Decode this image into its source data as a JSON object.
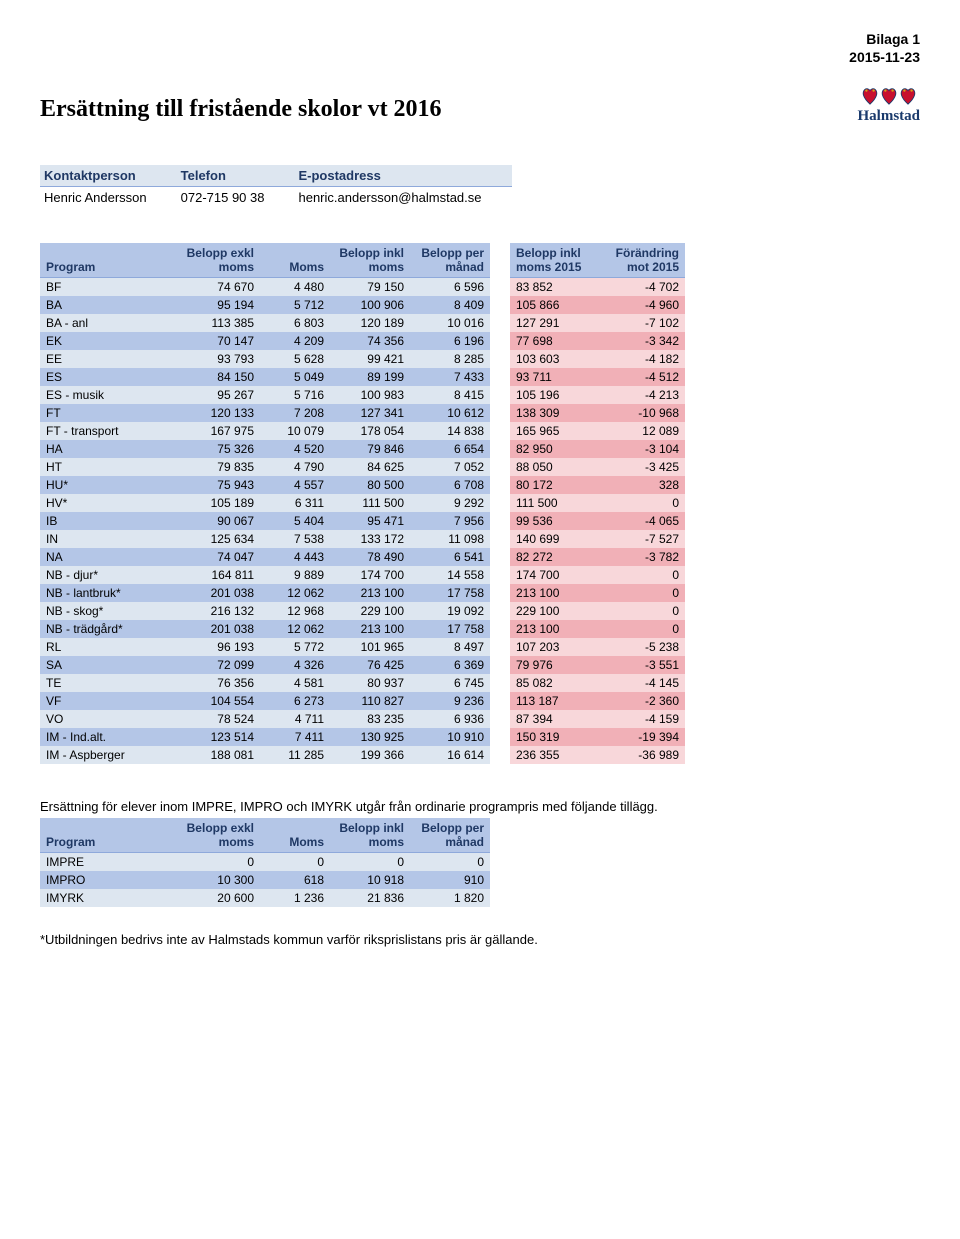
{
  "header": {
    "appendix": "Bilaga 1",
    "date": "2015-11-23",
    "title": "Ersättning till fristående skolor vt 2016"
  },
  "logo": {
    "text": "Halmstad",
    "heart_accent": "#d4a017",
    "heart_fill": "#c8102e",
    "heart_stroke": "#1a3a6c"
  },
  "contact": {
    "headers": [
      "Kontaktperson",
      "Telefon",
      "E-postadress"
    ],
    "name": "Henric Andersson",
    "phone": "072-715 90 38",
    "email": "henric.andersson@halmstad.se"
  },
  "main_table": {
    "left_headers": [
      "Program",
      "Belopp exkl moms",
      "Moms",
      "Belopp inkl moms",
      "Belopp per månad"
    ],
    "right_headers": [
      "Belopp inkl moms 2015",
      "Förändring mot 2015"
    ],
    "rows": [
      {
        "p": "BF",
        "v": [
          "74 670",
          "4 480",
          "79 150",
          "6 596"
        ],
        "r": [
          "83 852",
          "-4 702"
        ]
      },
      {
        "p": "BA",
        "v": [
          "95 194",
          "5 712",
          "100 906",
          "8 409"
        ],
        "r": [
          "105 866",
          "-4 960"
        ]
      },
      {
        "p": "BA - anl",
        "v": [
          "113 385",
          "6 803",
          "120 189",
          "10 016"
        ],
        "r": [
          "127 291",
          "-7 102"
        ]
      },
      {
        "p": "EK",
        "v": [
          "70 147",
          "4 209",
          "74 356",
          "6 196"
        ],
        "r": [
          "77 698",
          "-3 342"
        ]
      },
      {
        "p": "EE",
        "v": [
          "93 793",
          "5 628",
          "99 421",
          "8 285"
        ],
        "r": [
          "103 603",
          "-4 182"
        ]
      },
      {
        "p": "ES",
        "v": [
          "84 150",
          "5 049",
          "89 199",
          "7 433"
        ],
        "r": [
          "93 711",
          "-4 512"
        ]
      },
      {
        "p": "ES - musik",
        "v": [
          "95 267",
          "5 716",
          "100 983",
          "8 415"
        ],
        "r": [
          "105 196",
          "-4 213"
        ]
      },
      {
        "p": "FT",
        "v": [
          "120 133",
          "7 208",
          "127 341",
          "10 612"
        ],
        "r": [
          "138 309",
          "-10 968"
        ]
      },
      {
        "p": "FT - transport",
        "v": [
          "167 975",
          "10 079",
          "178 054",
          "14 838"
        ],
        "r": [
          "165 965",
          "12 089"
        ]
      },
      {
        "p": "HA",
        "v": [
          "75 326",
          "4 520",
          "79 846",
          "6 654"
        ],
        "r": [
          "82 950",
          "-3 104"
        ]
      },
      {
        "p": "HT",
        "v": [
          "79 835",
          "4 790",
          "84 625",
          "7 052"
        ],
        "r": [
          "88 050",
          "-3 425"
        ]
      },
      {
        "p": "HU*",
        "v": [
          "75 943",
          "4 557",
          "80 500",
          "6 708"
        ],
        "r": [
          "80 172",
          "328"
        ]
      },
      {
        "p": "HV*",
        "v": [
          "105 189",
          "6 311",
          "111 500",
          "9 292"
        ],
        "r": [
          "111 500",
          "0"
        ]
      },
      {
        "p": "IB",
        "v": [
          "90 067",
          "5 404",
          "95 471",
          "7 956"
        ],
        "r": [
          "99 536",
          "-4 065"
        ]
      },
      {
        "p": "IN",
        "v": [
          "125 634",
          "7 538",
          "133 172",
          "11 098"
        ],
        "r": [
          "140 699",
          "-7 527"
        ]
      },
      {
        "p": "NA",
        "v": [
          "74 047",
          "4 443",
          "78 490",
          "6 541"
        ],
        "r": [
          "82 272",
          "-3 782"
        ]
      },
      {
        "p": "NB - djur*",
        "v": [
          "164 811",
          "9 889",
          "174 700",
          "14 558"
        ],
        "r": [
          "174 700",
          "0"
        ]
      },
      {
        "p": "NB - lantbruk*",
        "v": [
          "201 038",
          "12 062",
          "213 100",
          "17 758"
        ],
        "r": [
          "213 100",
          "0"
        ]
      },
      {
        "p": "NB - skog*",
        "v": [
          "216 132",
          "12 968",
          "229 100",
          "19 092"
        ],
        "r": [
          "229 100",
          "0"
        ]
      },
      {
        "p": "NB - trädgård*",
        "v": [
          "201 038",
          "12 062",
          "213 100",
          "17 758"
        ],
        "r": [
          "213 100",
          "0"
        ]
      },
      {
        "p": "RL",
        "v": [
          "96 193",
          "5 772",
          "101 965",
          "8 497"
        ],
        "r": [
          "107 203",
          "-5 238"
        ]
      },
      {
        "p": "SA",
        "v": [
          "72 099",
          "4 326",
          "76 425",
          "6 369"
        ],
        "r": [
          "79 976",
          "-3 551"
        ]
      },
      {
        "p": "TE",
        "v": [
          "76 356",
          "4 581",
          "80 937",
          "6 745"
        ],
        "r": [
          "85 082",
          "-4 145"
        ]
      },
      {
        "p": "VF",
        "v": [
          "104 554",
          "6 273",
          "110 827",
          "9 236"
        ],
        "r": [
          "113 187",
          "-2 360"
        ]
      },
      {
        "p": "VO",
        "v": [
          "78 524",
          "4 711",
          "83 235",
          "6 936"
        ],
        "r": [
          "87 394",
          "-4 159"
        ]
      },
      {
        "p": "IM - Ind.alt.",
        "v": [
          "123 514",
          "7 411",
          "130 925",
          "10 910"
        ],
        "r": [
          "150 319",
          "-19 394"
        ]
      },
      {
        "p": "IM - Aspberger",
        "v": [
          "188 081",
          "11 285",
          "199 366",
          "16 614"
        ],
        "r": [
          "236 355",
          "-36 989"
        ]
      }
    ]
  },
  "note_text": "Ersättning för elever inom IMPRE, IMPRO och IMYRK utgår från ordinarie programpris med följande tillägg.",
  "tillagg_table": {
    "headers": [
      "Program",
      "Belopp exkl moms",
      "Moms",
      "Belopp inkl moms",
      "Belopp per månad"
    ],
    "rows": [
      {
        "p": "IMPRE",
        "v": [
          "0",
          "0",
          "0",
          "0"
        ]
      },
      {
        "p": "IMPRO",
        "v": [
          "10 300",
          "618",
          "10 918",
          "910"
        ]
      },
      {
        "p": "IMYRK",
        "v": [
          "20 600",
          "1 236",
          "21 836",
          "1 820"
        ]
      }
    ]
  },
  "footnote": "*Utbildningen bedrivs inte av Halmstads kommun varför riksprislistans pris är gällande."
}
